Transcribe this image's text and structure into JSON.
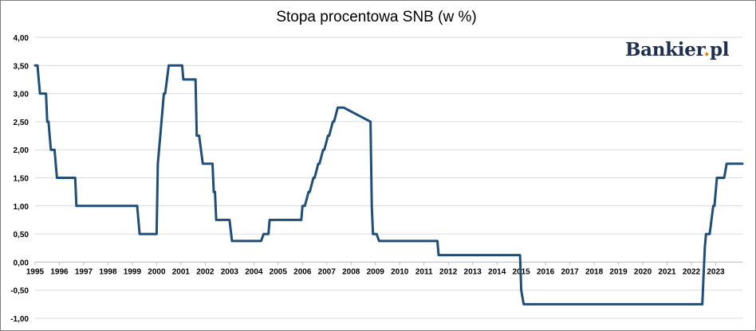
{
  "chart_data": {
    "type": "line",
    "title": "Stopa procentowa SNB (w %)",
    "xlabel": "",
    "ylabel": "",
    "ylim": [
      -1.0,
      4.0
    ],
    "xlim": [
      1995.0,
      2024.1
    ],
    "grid": "horizontal",
    "y_ticks": [
      "4,00",
      "3,50",
      "3,00",
      "2,50",
      "2,00",
      "1,50",
      "1,00",
      "0,50",
      "0,00",
      "-0,50",
      "-1,00"
    ],
    "x_ticks": [
      "1995",
      "1996",
      "1997",
      "1998",
      "1999",
      "2000",
      "2001",
      "2002",
      "2003",
      "2004",
      "2005",
      "2006",
      "2007",
      "2008",
      "2009",
      "2010",
      "2011",
      "2012",
      "2013",
      "2014",
      "2015",
      "2016",
      "2017",
      "2018",
      "2019",
      "2020",
      "2021",
      "2022",
      "2023"
    ],
    "series": [
      {
        "color": "#1f4e79",
        "x": [
          1995.0,
          1995.1,
          1995.2,
          1995.45,
          1995.5,
          1995.55,
          1995.65,
          1995.7,
          1995.8,
          1995.9,
          1996.0,
          1996.1,
          1996.15,
          1996.25,
          1996.65,
          1996.7,
          1996.75,
          1999.1,
          1999.2,
          1999.3,
          1999.85,
          1999.9,
          2000.0,
          2000.05,
          2000.15,
          2000.3,
          2000.35,
          2000.5,
          2000.55,
          2001.05,
          2001.1,
          2001.2,
          2001.6,
          2001.65,
          2001.75,
          2001.9,
          2001.95,
          2002.3,
          2002.35,
          2002.4,
          2002.45,
          2002.55,
          2002.6,
          2003.0,
          2003.1,
          2003.15,
          2004.3,
          2004.4,
          2004.6,
          2004.65,
          2004.75,
          2005.95,
          2006.0,
          2006.1,
          2006.25,
          2006.3,
          2006.45,
          2006.5,
          2006.65,
          2006.7,
          2006.85,
          2006.9,
          2007.05,
          2007.1,
          2007.25,
          2007.3,
          2007.45,
          2007.5,
          2007.65,
          2007.7,
          2008.8,
          2008.85,
          2008.9,
          2009.0,
          2009.05,
          2009.15,
          2009.2,
          2011.55,
          2011.6,
          2011.7,
          2014.95,
          2015.0,
          2015.1,
          2022.45,
          2022.5,
          2022.55,
          2022.6,
          2022.7,
          2022.75,
          2022.9,
          2022.95,
          2023.05,
          2023.15,
          2023.3,
          2023.35,
          2023.45,
          2023.5,
          2023.65,
          2024.1
        ],
        "y": [
          3.5,
          3.5,
          3.0,
          3.0,
          2.5,
          2.5,
          2.0,
          2.0,
          2.0,
          1.5,
          1.5,
          1.5,
          1.5,
          1.5,
          1.5,
          1.0,
          1.0,
          1.0,
          1.0,
          0.5,
          0.5,
          0.5,
          0.5,
          1.75,
          2.25,
          3.0,
          3.0,
          3.5,
          3.5,
          3.5,
          3.25,
          3.25,
          3.25,
          2.25,
          2.25,
          1.75,
          1.75,
          1.75,
          1.25,
          1.25,
          0.75,
          0.75,
          0.75,
          0.75,
          0.375,
          0.375,
          0.375,
          0.5,
          0.5,
          0.75,
          0.75,
          0.75,
          1.0,
          1.0,
          1.25,
          1.25,
          1.5,
          1.5,
          1.75,
          1.75,
          2.0,
          2.0,
          2.25,
          2.25,
          2.5,
          2.5,
          2.75,
          2.75,
          2.75,
          2.75,
          2.5,
          1.0,
          0.5,
          0.5,
          0.5,
          0.375,
          0.375,
          0.375,
          0.125,
          0.125,
          0.125,
          -0.5,
          -0.75,
          -0.75,
          -0.25,
          0.25,
          0.5,
          0.5,
          0.5,
          1.0,
          1.0,
          1.5,
          1.5,
          1.5,
          1.5,
          1.75,
          1.75,
          1.75,
          1.75
        ]
      }
    ]
  },
  "logo": {
    "name": "Bankier",
    "dot": ".",
    "suffix": "pl"
  }
}
